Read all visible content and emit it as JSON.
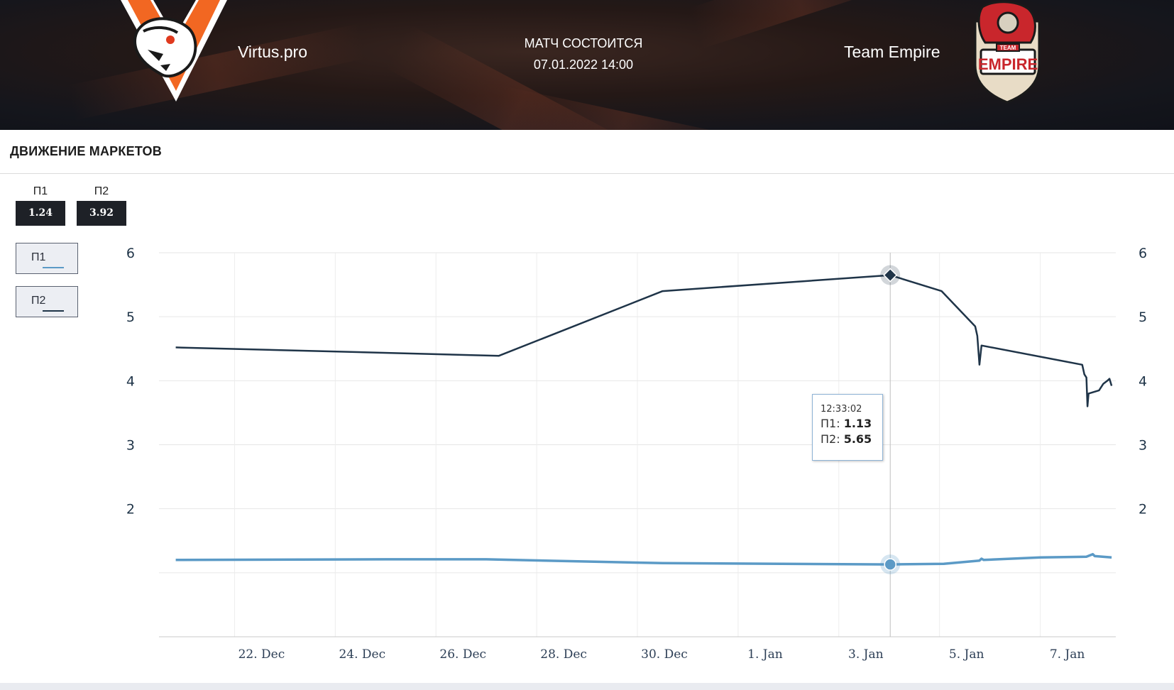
{
  "header": {
    "team1_name": "Virtus.pro",
    "team2_name": "Team Empire",
    "match_status": "МАТЧ СОСТОИТСЯ",
    "match_datetime": "07.01.2022 14:00",
    "team2_logo_text": "EMPIRE",
    "team2_logo_small_text": "TEAM"
  },
  "section": {
    "title": "ДВИЖЕНИЕ МАРКЕТОВ"
  },
  "odds": [
    {
      "label": "П1",
      "value": "1.24"
    },
    {
      "label": "П2",
      "value": "3.92"
    }
  ],
  "legend": [
    {
      "label": "П1",
      "color": "#5b9ac6"
    },
    {
      "label": "П2",
      "color": "#1f3448"
    }
  ],
  "tooltip": {
    "time": "12:33:02",
    "p1_label": "П1: ",
    "p1_value": "1.13",
    "p2_label": "П2: ",
    "p2_value": "5.65"
  },
  "chart_data": {
    "type": "line",
    "x_start": "2021-12-19 12:00",
    "x_end": "2022-01-07 12:00",
    "y_range": [
      0,
      6
    ],
    "y_ticks": [
      2,
      3,
      4,
      5,
      6
    ],
    "x_ticks": [
      {
        "label": "22. Dec",
        "date": "2021-12-21"
      },
      {
        "label": "24. Dec",
        "date": "2021-12-23"
      },
      {
        "label": "26. Dec",
        "date": "2021-12-25"
      },
      {
        "label": "28. Dec",
        "date": "2021-12-27"
      },
      {
        "label": "30. Dec",
        "date": "2021-12-29"
      },
      {
        "label": "1. Jan",
        "date": "2021-12-31"
      },
      {
        "label": "3. Jan",
        "date": "2022-01-02"
      },
      {
        "label": "5. Jan",
        "date": "2022-01-04"
      },
      {
        "label": "7. Jan",
        "date": "2022-01-06"
      }
    ],
    "grid": true,
    "dual_y_axis": true,
    "highlight_date": "2022-01-03 00:30",
    "series": [
      {
        "name": "П1",
        "color": "#5b9ac6",
        "points": [
          [
            "2021-12-19 20:00",
            1.2
          ],
          [
            "2021-12-24 00:00",
            1.21
          ],
          [
            "2021-12-26 00:00",
            1.21
          ],
          [
            "2021-12-29 12:00",
            1.15
          ],
          [
            "2022-01-03 00:30",
            1.13
          ],
          [
            "2022-01-04 02:00",
            1.14
          ],
          [
            "2022-01-04 19:00",
            1.19
          ],
          [
            "2022-01-04 20:00",
            1.22
          ],
          [
            "2022-01-04 21:00",
            1.2
          ],
          [
            "2022-01-06 00:00",
            1.24
          ],
          [
            "2022-01-06 22:00",
            1.25
          ],
          [
            "2022-01-07 01:00",
            1.29
          ],
          [
            "2022-01-07 02:00",
            1.26
          ],
          [
            "2022-01-07 10:00",
            1.24
          ]
        ]
      },
      {
        "name": "П2",
        "color": "#1f3448",
        "points": [
          [
            "2021-12-19 20:00",
            4.52
          ],
          [
            "2021-12-26 06:00",
            4.39
          ],
          [
            "2021-12-29 12:00",
            5.4
          ],
          [
            "2022-01-03 00:30",
            5.65
          ],
          [
            "2022-01-04 01:00",
            5.4
          ],
          [
            "2022-01-04 17:00",
            4.85
          ],
          [
            "2022-01-04 18:00",
            4.7
          ],
          [
            "2022-01-04 19:00",
            4.25
          ],
          [
            "2022-01-04 20:00",
            4.55
          ],
          [
            "2022-01-06 20:00",
            4.25
          ],
          [
            "2022-01-06 21:00",
            4.1
          ],
          [
            "2022-01-06 22:00",
            4.05
          ],
          [
            "2022-01-06 22:30",
            3.6
          ],
          [
            "2022-01-06 23:00",
            3.8
          ],
          [
            "2022-01-07 04:00",
            3.85
          ],
          [
            "2022-01-07 06:00",
            3.95
          ],
          [
            "2022-01-07 08:00",
            4.0
          ],
          [
            "2022-01-07 09:00",
            4.03
          ],
          [
            "2022-01-07 10:00",
            3.92
          ]
        ]
      }
    ]
  }
}
